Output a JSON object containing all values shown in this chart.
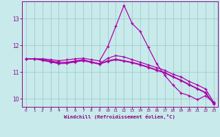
{
  "xlabel": "Windchill (Refroidissement éolien,°C)",
  "background_color": "#c8eaea",
  "grid_color": "#a0cccc",
  "line_color": "#aa00aa",
  "spine_color": "#880088",
  "tick_color": "#880088",
  "label_color": "#880088",
  "xlim": [
    -0.5,
    23.5
  ],
  "ylim": [
    9.7,
    13.65
  ],
  "xticks": [
    0,
    1,
    2,
    3,
    4,
    5,
    6,
    7,
    8,
    9,
    10,
    11,
    12,
    13,
    14,
    15,
    16,
    17,
    18,
    19,
    20,
    21,
    22,
    23
  ],
  "yticks": [
    10,
    11,
    12,
    13
  ],
  "series": [
    {
      "x": [
        0,
        1,
        2,
        3,
        4,
        5,
        6,
        7,
        8,
        9,
        10,
        11,
        12,
        13,
        14,
        15,
        16,
        17,
        18,
        19,
        20,
        21,
        22,
        23
      ],
      "y": [
        11.5,
        11.5,
        11.5,
        11.47,
        11.43,
        11.46,
        11.5,
        11.52,
        11.47,
        11.42,
        11.95,
        12.72,
        13.5,
        12.82,
        12.52,
        11.92,
        11.32,
        10.88,
        10.52,
        10.22,
        10.12,
        9.97,
        10.12,
        9.85
      ]
    },
    {
      "x": [
        0,
        1,
        2,
        3,
        4,
        5,
        6,
        7,
        8,
        9,
        10,
        11,
        12,
        13,
        14,
        15,
        16,
        17,
        18,
        19,
        20,
        21,
        22,
        23
      ],
      "y": [
        11.5,
        11.5,
        11.47,
        11.42,
        11.37,
        11.37,
        11.42,
        11.47,
        11.37,
        11.32,
        11.52,
        11.62,
        11.57,
        11.47,
        11.37,
        11.27,
        11.17,
        11.07,
        10.92,
        10.82,
        10.65,
        10.52,
        10.37,
        9.87
      ]
    },
    {
      "x": [
        0,
        1,
        2,
        3,
        4,
        5,
        6,
        7,
        8,
        9,
        10,
        11,
        12,
        13,
        14,
        15,
        16,
        17,
        18,
        19,
        20,
        21,
        22,
        23
      ],
      "y": [
        11.5,
        11.5,
        11.46,
        11.4,
        11.33,
        11.34,
        11.4,
        11.45,
        11.39,
        11.31,
        11.43,
        11.49,
        11.43,
        11.37,
        11.29,
        11.19,
        11.09,
        10.99,
        10.84,
        10.7,
        10.54,
        10.39,
        10.24,
        9.82
      ]
    },
    {
      "x": [
        0,
        1,
        2,
        3,
        4,
        5,
        6,
        7,
        8,
        9,
        10,
        11,
        12,
        13,
        14,
        15,
        16,
        17,
        18,
        19,
        20,
        21,
        22,
        23
      ],
      "y": [
        11.5,
        11.5,
        11.44,
        11.38,
        11.32,
        11.33,
        11.38,
        11.43,
        11.36,
        11.3,
        11.4,
        11.46,
        11.41,
        11.35,
        11.27,
        11.17,
        11.07,
        10.97,
        10.82,
        10.68,
        10.52,
        10.37,
        10.22,
        9.8
      ]
    }
  ]
}
